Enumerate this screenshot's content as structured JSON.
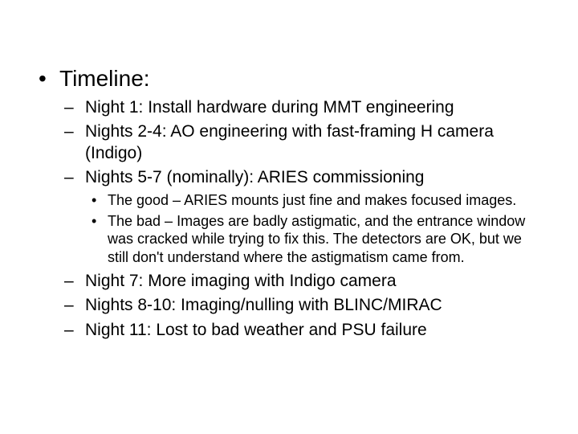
{
  "colors": {
    "background": "#ffffff",
    "text": "#000000"
  },
  "typography": {
    "family": "Arial",
    "level1_fontsize_pt": 28,
    "level2_fontsize_pt": 21,
    "level3_fontsize_pt": 18
  },
  "bullets": {
    "level1_marker": "•",
    "level2_marker": "–",
    "level3_marker": "•"
  },
  "timeline": {
    "heading": "Timeline:",
    "items": [
      {
        "text": "Night 1: Install hardware during MMT engineering"
      },
      {
        "text": "Nights 2-4: AO engineering with fast-framing H camera (Indigo)"
      },
      {
        "text": "Nights 5-7 (nominally): ARIES commissioning",
        "sub": [
          "The good – ARIES mounts just fine and makes focused images.",
          "The bad – Images are badly astigmatic, and the entrance window was cracked while trying to fix this.  The detectors are OK, but we still don't understand where the astigmatism came from."
        ]
      },
      {
        "text": "Night 7: More imaging with Indigo camera"
      },
      {
        "text": "Nights 8-10: Imaging/nulling with BLINC/MIRAC"
      },
      {
        "text": "Night 11: Lost to bad weather and PSU failure"
      }
    ]
  }
}
